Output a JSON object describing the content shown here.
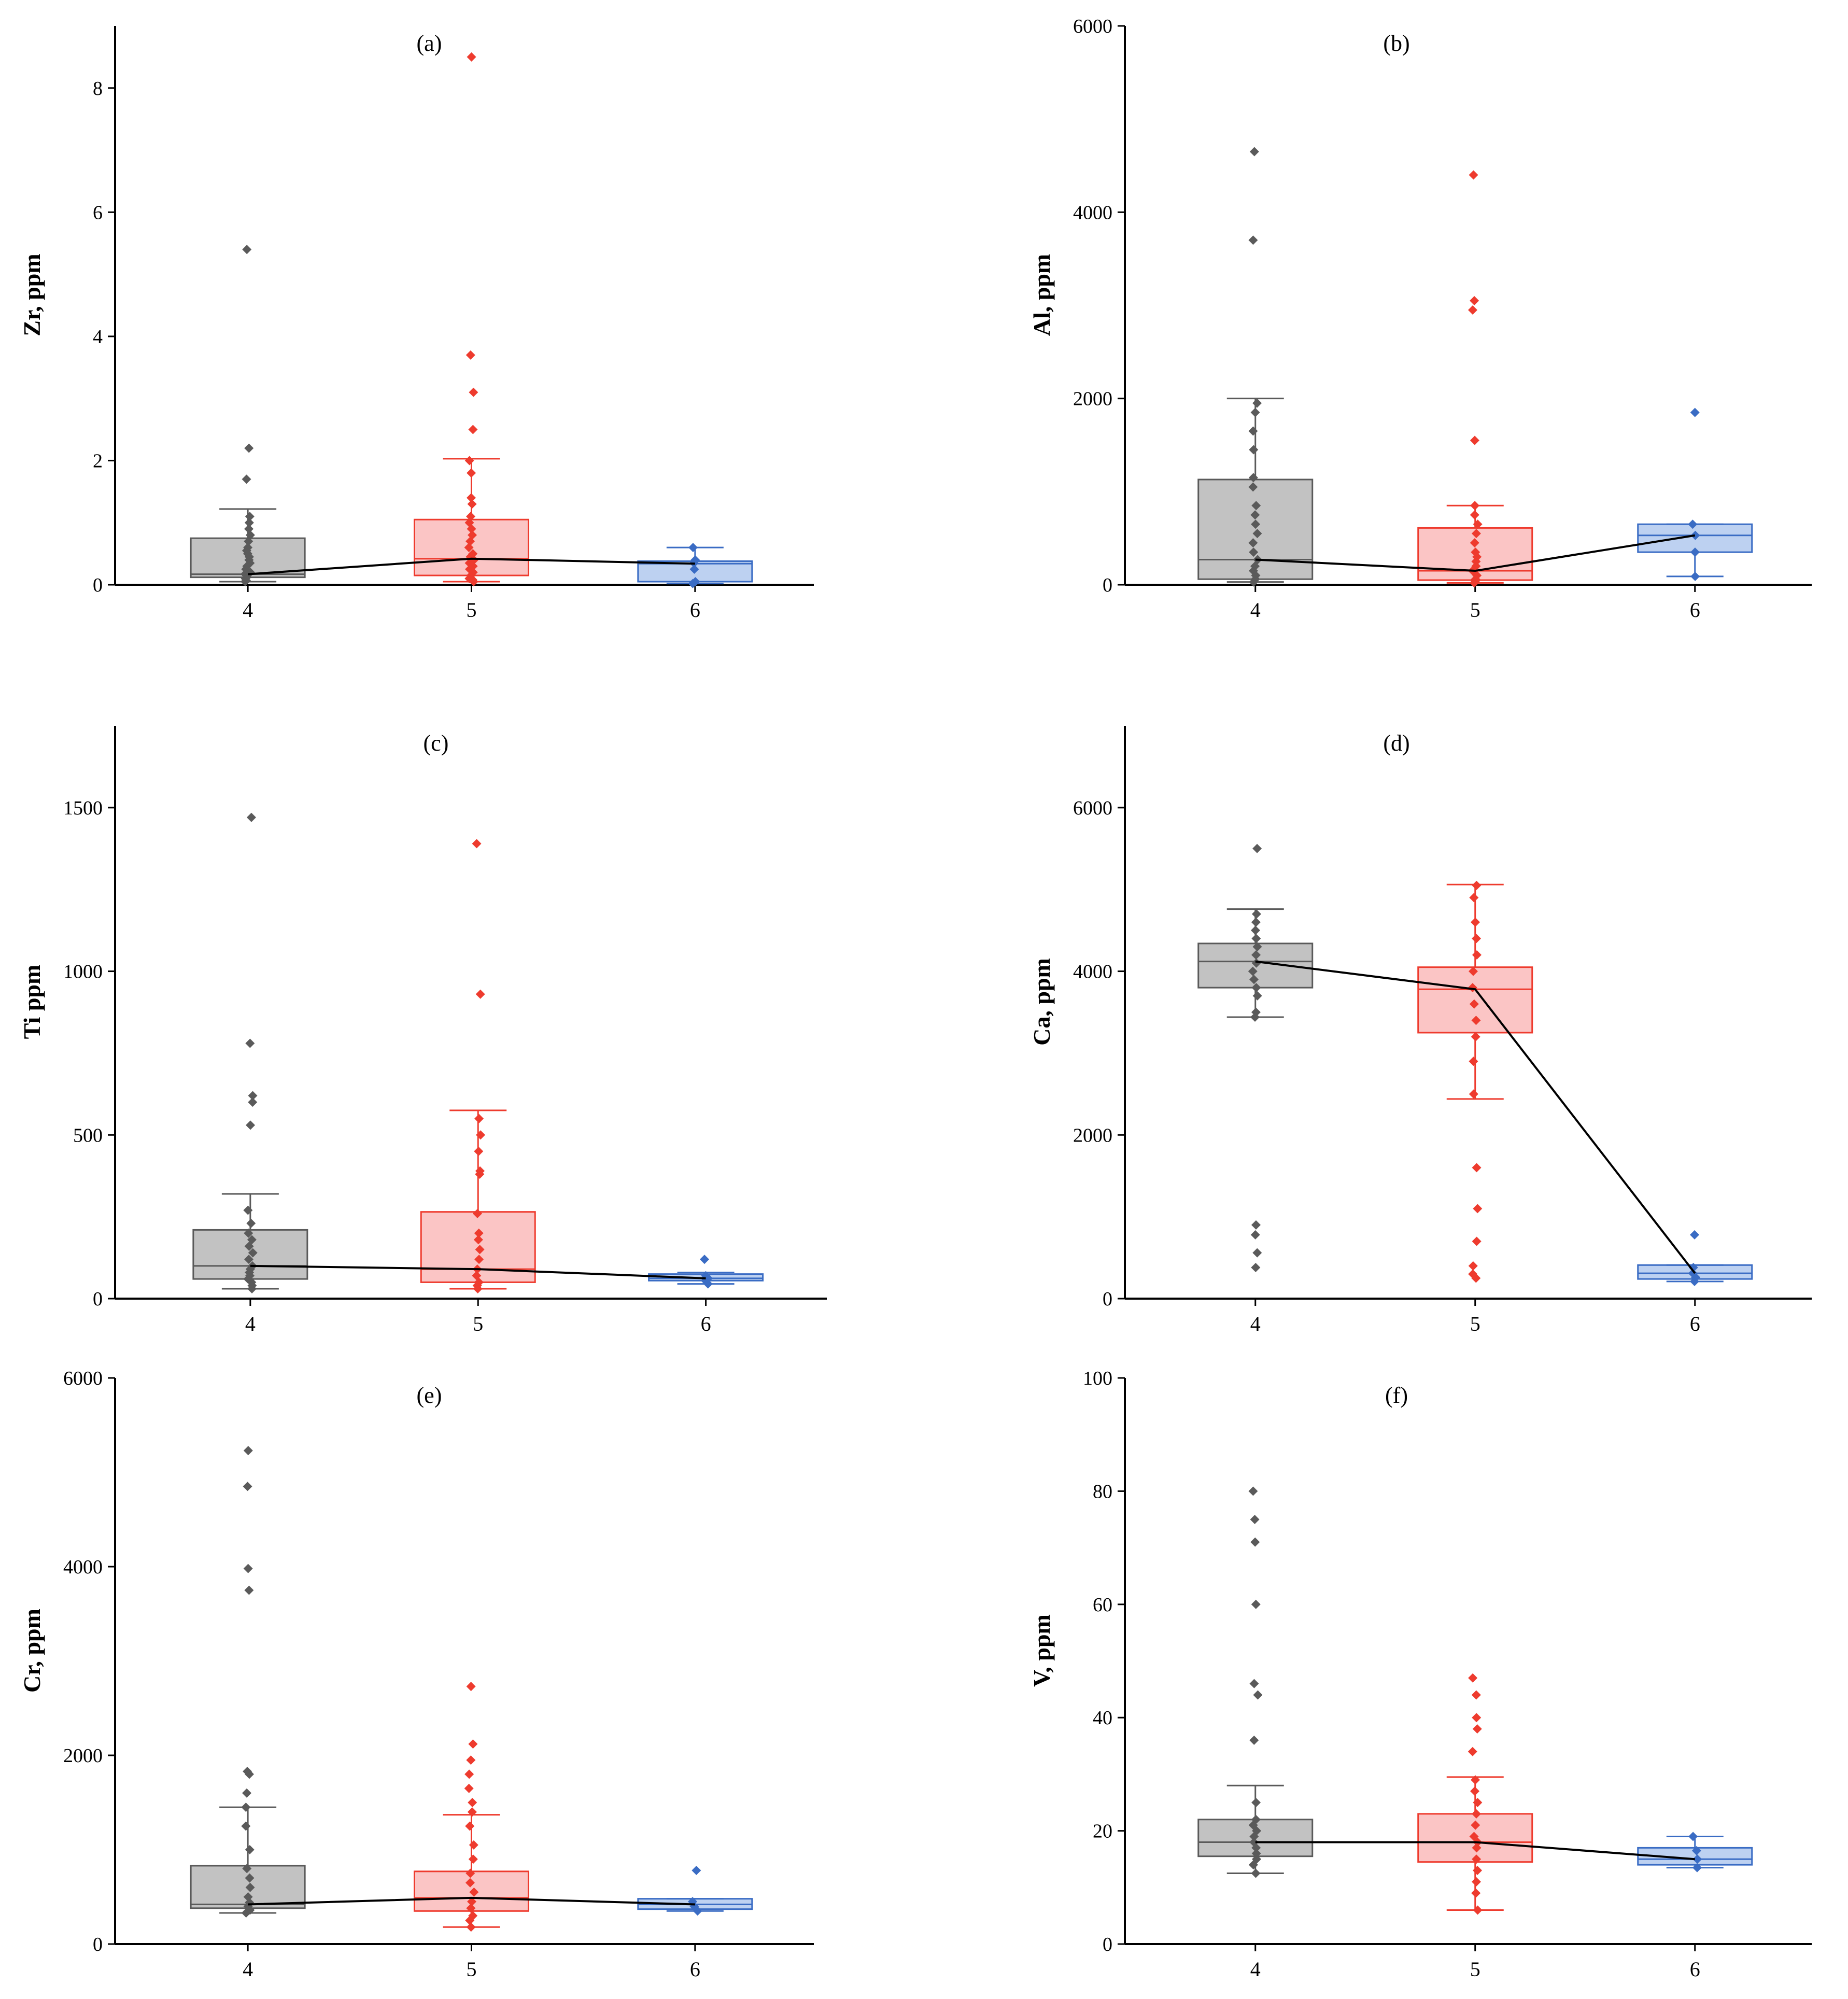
{
  "figure": {
    "description_colors": {
      "group4": "#5a5a5a",
      "group5": "#ee3b2e",
      "group6": "#3a6cc4"
    }
  },
  "chart_data": [
    {
      "type": "box",
      "panel": "(a)",
      "title": "(a)",
      "ylabel": "Zr, ppm",
      "xlabel": "",
      "categories": [
        "4",
        "5",
        "6"
      ],
      "ylim": [
        0,
        9
      ],
      "yticks": [
        0,
        2,
        4,
        6,
        8
      ],
      "boxes": [
        {
          "cat": "4",
          "q1": 0.12,
          "median": 0.17,
          "q3": 0.75,
          "whisker_low": 0.05,
          "whisker_high": 1.22,
          "points": [
            0.05,
            0.07,
            0.1,
            0.12,
            0.15,
            0.18,
            0.2,
            0.25,
            0.3,
            0.35,
            0.4,
            0.45,
            0.5,
            0.55,
            0.6,
            0.7,
            0.8,
            0.9,
            1.0,
            1.1,
            1.7,
            2.2,
            5.4
          ]
        },
        {
          "cat": "5",
          "q1": 0.15,
          "median": 0.42,
          "q3": 1.05,
          "whisker_low": 0.05,
          "whisker_high": 2.03,
          "points": [
            0.05,
            0.08,
            0.1,
            0.15,
            0.2,
            0.25,
            0.3,
            0.35,
            0.4,
            0.45,
            0.5,
            0.6,
            0.7,
            0.8,
            0.9,
            1.0,
            1.1,
            1.3,
            1.4,
            1.8,
            2.0,
            2.5,
            3.1,
            3.7,
            8.5
          ]
        },
        {
          "cat": "6",
          "q1": 0.05,
          "median": 0.34,
          "q3": 0.38,
          "whisker_low": 0.02,
          "whisker_high": 0.6,
          "points": [
            0.02,
            0.05,
            0.25,
            0.35,
            0.4,
            0.6
          ]
        }
      ],
      "median_line": [
        0.17,
        0.42,
        0.34
      ]
    },
    {
      "type": "box",
      "panel": "(b)",
      "title": "(b)",
      "ylabel": "Al, ppm",
      "xlabel": "",
      "categories": [
        "4",
        "5",
        "6"
      ],
      "ylim": [
        0,
        6000
      ],
      "yticks": [
        0,
        2000,
        4000,
        6000
      ],
      "boxes": [
        {
          "cat": "4",
          "q1": 60,
          "median": 270,
          "q3": 1130,
          "whisker_low": 30,
          "whisker_high": 2000,
          "points": [
            30,
            60,
            100,
            150,
            200,
            270,
            350,
            450,
            550,
            650,
            750,
            850,
            1050,
            1150,
            1450,
            1650,
            1850,
            1950,
            3700,
            4650
          ]
        },
        {
          "cat": "5",
          "q1": 50,
          "median": 150,
          "q3": 610,
          "whisker_low": 20,
          "whisker_high": 850,
          "points": [
            20,
            40,
            60,
            100,
            150,
            200,
            250,
            300,
            350,
            450,
            550,
            650,
            750,
            850,
            1550,
            2950,
            3050,
            4400
          ]
        },
        {
          "cat": "6",
          "q1": 350,
          "median": 530,
          "q3": 650,
          "whisker_low": 90,
          "whisker_high": 650,
          "points": [
            90,
            350,
            530,
            650,
            1850
          ]
        }
      ],
      "median_line": [
        270,
        150,
        530
      ]
    },
    {
      "type": "box",
      "panel": "(c)",
      "title": "(c)",
      "ylabel": "Ti ppm",
      "xlabel": "",
      "categories": [
        "4",
        "5",
        "6"
      ],
      "ylim": [
        0,
        1750
      ],
      "yticks": [
        0,
        500,
        1000,
        1500
      ],
      "boxes": [
        {
          "cat": "4",
          "q1": 60,
          "median": 100,
          "q3": 210,
          "whisker_low": 30,
          "whisker_high": 320,
          "points": [
            30,
            40,
            50,
            60,
            70,
            80,
            90,
            100,
            120,
            140,
            160,
            180,
            200,
            230,
            270,
            530,
            600,
            620,
            780,
            1470
          ]
        },
        {
          "cat": "5",
          "q1": 50,
          "median": 90,
          "q3": 265,
          "whisker_low": 30,
          "whisker_high": 575,
          "points": [
            30,
            40,
            50,
            70,
            90,
            120,
            150,
            180,
            200,
            260,
            380,
            390,
            450,
            500,
            550,
            930,
            1390
          ]
        },
        {
          "cat": "6",
          "q1": 55,
          "median": 62,
          "q3": 75,
          "whisker_low": 45,
          "whisker_high": 80,
          "points": [
            45,
            55,
            62,
            70,
            120
          ]
        }
      ],
      "median_line": [
        100,
        90,
        62
      ]
    },
    {
      "type": "box",
      "panel": "(d)",
      "title": "(d)",
      "ylabel": "Ca, ppm",
      "xlabel": "",
      "categories": [
        "4",
        "5",
        "6"
      ],
      "ylim": [
        0,
        7000
      ],
      "yticks": [
        0,
        2000,
        4000,
        6000
      ],
      "boxes": [
        {
          "cat": "4",
          "q1": 3800,
          "median": 4120,
          "q3": 4340,
          "whisker_low": 3440,
          "whisker_high": 4760,
          "points": [
            380,
            560,
            780,
            900,
            3440,
            3500,
            3700,
            3800,
            3900,
            4000,
            4100,
            4200,
            4300,
            4400,
            4500,
            4600,
            4700,
            5500
          ]
        },
        {
          "cat": "5",
          "q1": 3250,
          "median": 3780,
          "q3": 4050,
          "whisker_low": 2440,
          "whisker_high": 5060,
          "points": [
            250,
            300,
            400,
            700,
            1100,
            1600,
            2500,
            2900,
            3200,
            3400,
            3600,
            3800,
            4000,
            4200,
            4400,
            4600,
            4900,
            5050
          ]
        },
        {
          "cat": "6",
          "q1": 240,
          "median": 310,
          "q3": 410,
          "whisker_low": 210,
          "whisker_high": 410,
          "points": [
            210,
            260,
            310,
            380,
            780
          ]
        }
      ],
      "median_line": [
        4120,
        3780,
        310
      ]
    },
    {
      "type": "box",
      "panel": "(e)",
      "title": "(e)",
      "ylabel": "Cr, ppm",
      "xlabel": "",
      "categories": [
        "4",
        "5",
        "6"
      ],
      "ylim": [
        0,
        6000
      ],
      "yticks": [
        0,
        2000,
        4000,
        6000
      ],
      "boxes": [
        {
          "cat": "4",
          "q1": 380,
          "median": 420,
          "q3": 830,
          "whisker_low": 330,
          "whisker_high": 1450,
          "points": [
            330,
            360,
            400,
            440,
            500,
            600,
            700,
            800,
            1000,
            1250,
            1450,
            1600,
            1800,
            1830,
            3750,
            3980,
            4850,
            5230
          ]
        },
        {
          "cat": "5",
          "q1": 350,
          "median": 490,
          "q3": 770,
          "whisker_low": 180,
          "whisker_high": 1370,
          "points": [
            180,
            250,
            300,
            380,
            450,
            550,
            650,
            750,
            900,
            1050,
            1250,
            1400,
            1500,
            1650,
            1800,
            1950,
            2120,
            2730
          ]
        },
        {
          "cat": "6",
          "q1": 370,
          "median": 420,
          "q3": 480,
          "whisker_low": 350,
          "whisker_high": 480,
          "points": [
            350,
            400,
            450,
            780
          ]
        }
      ],
      "median_line": [
        420,
        490,
        420
      ]
    },
    {
      "type": "box",
      "panel": "(f)",
      "title": "(f)",
      "ylabel": "V, ppm",
      "xlabel": "",
      "categories": [
        "4",
        "5",
        "6"
      ],
      "ylim": [
        0,
        100
      ],
      "yticks": [
        0,
        20,
        40,
        60,
        80,
        100
      ],
      "boxes": [
        {
          "cat": "4",
          "q1": 15.5,
          "median": 18,
          "q3": 22,
          "whisker_low": 12.5,
          "whisker_high": 28,
          "points": [
            12.5,
            14,
            15,
            16,
            17,
            18,
            19,
            20,
            21,
            22,
            25,
            36,
            44,
            46,
            60,
            71,
            75,
            80
          ]
        },
        {
          "cat": "5",
          "q1": 14.5,
          "median": 18,
          "q3": 23,
          "whisker_low": 6,
          "whisker_high": 29.5,
          "points": [
            6,
            9,
            11,
            13,
            15,
            17,
            18,
            19,
            21,
            23,
            25,
            27,
            29,
            34,
            38,
            40,
            44,
            47
          ]
        },
        {
          "cat": "6",
          "q1": 14,
          "median": 15,
          "q3": 17,
          "whisker_low": 13.5,
          "whisker_high": 19,
          "points": [
            13.5,
            15,
            16.5,
            19
          ]
        }
      ],
      "median_line": [
        18,
        18,
        15
      ]
    }
  ]
}
